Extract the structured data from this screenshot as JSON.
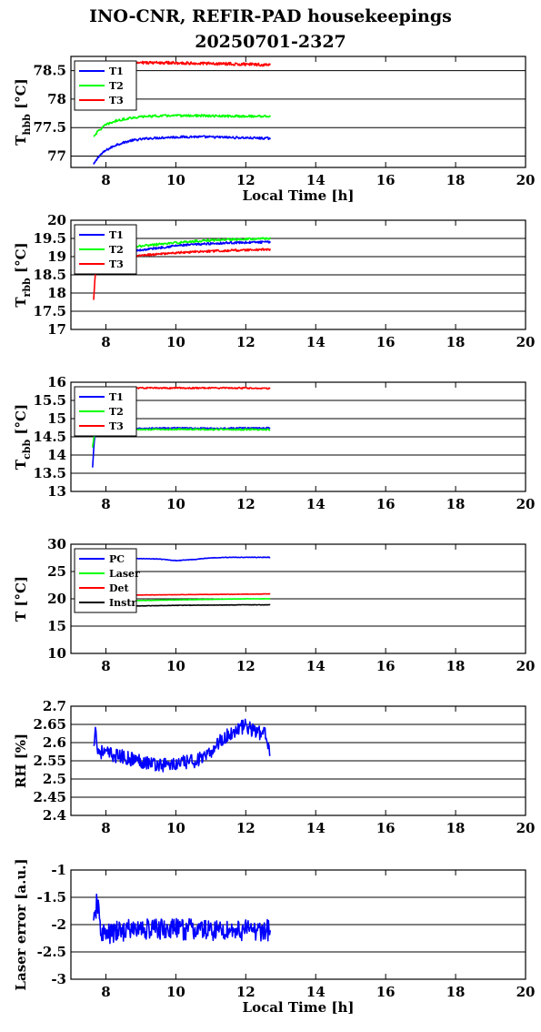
{
  "title_lines": [
    "INO-CNR, REFIR-PAD housekeepings",
    "20250701-2327"
  ],
  "colors": {
    "blue": "#0000ff",
    "green": "#00ff00",
    "red": "#ff0000",
    "black": "#000000"
  },
  "chart_data": [
    {
      "type": "line",
      "ylabel": "T_hbb [°C]",
      "ylabel_main": "T",
      "ylabel_sub": "hbb",
      "ylabel_unit": " [°C]",
      "xlabel": "Local Time [h]",
      "xlim": [
        7,
        20
      ],
      "ylim": [
        76.8,
        78.75
      ],
      "xticks": [
        8,
        10,
        12,
        14,
        16,
        18,
        20
      ],
      "yticks": [
        77,
        77.5,
        78,
        78.5
      ],
      "grid": "horizontal",
      "legend_position": "top-left",
      "series": [
        {
          "name": "T1",
          "color": "#0000ff",
          "x": [
            7.65,
            7.8,
            8.0,
            8.3,
            8.7,
            9.2,
            9.8,
            10.5,
            11.3,
            12.0,
            12.7
          ],
          "y": [
            76.85,
            77.0,
            77.1,
            77.2,
            77.27,
            77.31,
            77.33,
            77.34,
            77.33,
            77.32,
            77.31
          ],
          "noise": 0.02
        },
        {
          "name": "T2",
          "color": "#00ff00",
          "x": [
            7.65,
            7.8,
            8.0,
            8.3,
            8.7,
            9.2,
            9.8,
            10.5,
            11.3,
            12.0,
            12.7
          ],
          "y": [
            77.35,
            77.45,
            77.55,
            77.62,
            77.67,
            77.7,
            77.71,
            77.71,
            77.7,
            77.7,
            77.7
          ],
          "noise": 0.02
        },
        {
          "name": "T3",
          "color": "#ff0000",
          "x": [
            8.05,
            8.4,
            8.8,
            9.5,
            10.5,
            11.5,
            12.7
          ],
          "y": [
            78.6,
            78.63,
            78.64,
            78.64,
            78.63,
            78.62,
            78.6
          ],
          "noise": 0.025
        }
      ]
    },
    {
      "type": "line",
      "ylabel": "T_rbb [°C]",
      "ylabel_main": "T",
      "ylabel_sub": "rbb",
      "ylabel_unit": " [°C]",
      "xlabel": "",
      "xlim": [
        7,
        20
      ],
      "ylim": [
        17,
        20
      ],
      "xticks": [
        8,
        10,
        12,
        14,
        16,
        18,
        20
      ],
      "yticks": [
        17,
        17.5,
        18,
        18.5,
        19,
        19.5,
        20
      ],
      "grid": "horizontal",
      "legend_position": "top-left",
      "series": [
        {
          "name": "T1",
          "color": "#0000ff",
          "x": [
            7.65,
            8.0,
            8.5,
            9.0,
            9.5,
            10.0,
            10.5,
            11.0,
            11.5,
            12.0,
            12.7
          ],
          "y": [
            18.9,
            19.05,
            19.12,
            19.18,
            19.24,
            19.3,
            19.33,
            19.36,
            19.38,
            19.39,
            19.4
          ],
          "noise": 0.03
        },
        {
          "name": "T2",
          "color": "#00ff00",
          "x": [
            7.65,
            8.0,
            8.5,
            9.0,
            9.5,
            10.0,
            10.5,
            11.0,
            11.5,
            12.0,
            12.7
          ],
          "y": [
            19.0,
            19.15,
            19.22,
            19.29,
            19.34,
            19.38,
            19.42,
            19.45,
            19.47,
            19.49,
            19.5
          ],
          "noise": 0.03
        },
        {
          "name": "T3",
          "color": "#ff0000",
          "x": [
            7.65,
            7.68,
            7.72,
            8.0,
            8.5,
            9.0,
            9.5,
            10.0,
            10.5,
            11.0,
            11.5,
            12.0,
            12.7
          ],
          "y": [
            17.8,
            18.3,
            18.75,
            18.9,
            18.98,
            19.03,
            19.07,
            19.1,
            19.13,
            19.15,
            19.17,
            19.18,
            19.2
          ],
          "noise": 0.03
        }
      ]
    },
    {
      "type": "line",
      "ylabel": "T_cbb [°C]",
      "ylabel_main": "T",
      "ylabel_sub": "cbb",
      "ylabel_unit": " [°C]",
      "xlabel": "",
      "xlim": [
        7,
        20
      ],
      "ylim": [
        13,
        16
      ],
      "xticks": [
        8,
        10,
        12,
        14,
        16,
        18,
        20
      ],
      "yticks": [
        13,
        13.5,
        14,
        14.5,
        15,
        15.5,
        16
      ],
      "grid": "horizontal",
      "legend_position": "top-left",
      "series": [
        {
          "name": "T1",
          "color": "#0000ff",
          "x": [
            7.62,
            7.66,
            7.7,
            8.0,
            9.0,
            10.0,
            11.0,
            12.0,
            12.7
          ],
          "y": [
            13.65,
            14.3,
            14.68,
            14.72,
            14.73,
            14.74,
            14.73,
            14.74,
            14.74
          ],
          "noise": 0.02
        },
        {
          "name": "T2",
          "color": "#00ff00",
          "x": [
            7.62,
            7.66,
            7.7,
            8.0,
            9.0,
            10.0,
            11.0,
            12.0,
            12.7
          ],
          "y": [
            14.2,
            14.5,
            14.66,
            14.7,
            14.7,
            14.71,
            14.7,
            14.7,
            14.7
          ],
          "noise": 0.02
        },
        {
          "name": "T3",
          "color": "#ff0000",
          "x": [
            7.62,
            8.0,
            9.0,
            10.0,
            11.0,
            12.0,
            12.7
          ],
          "y": [
            15.83,
            15.84,
            15.84,
            15.84,
            15.84,
            15.84,
            15.83
          ],
          "noise": 0.02
        }
      ]
    },
    {
      "type": "line",
      "ylabel": "T [°C]",
      "ylabel_main": "T [°C]",
      "ylabel_sub": "",
      "ylabel_unit": "",
      "xlabel": "",
      "xlim": [
        7,
        20
      ],
      "ylim": [
        10,
        30
      ],
      "xticks": [
        8,
        10,
        12,
        14,
        16,
        18,
        20
      ],
      "yticks": [
        10,
        15,
        20,
        25,
        30
      ],
      "grid": "horizontal",
      "legend_position": "top-left",
      "series": [
        {
          "name": "PC",
          "color": "#0000ff",
          "x": [
            7.65,
            8.5,
            9.5,
            10.0,
            10.5,
            11.0,
            11.5,
            12.0,
            12.7
          ],
          "y": [
            27.3,
            27.4,
            27.3,
            27.0,
            27.2,
            27.5,
            27.6,
            27.6,
            27.6
          ],
          "noise": 0.05
        },
        {
          "name": "Laser",
          "color": "#00ff00",
          "x": [
            7.65,
            9.0,
            10.0,
            11.0,
            12.0,
            12.7
          ],
          "y": [
            19.6,
            19.7,
            19.8,
            19.9,
            20.0,
            20.0
          ],
          "noise": 0.03
        },
        {
          "name": "Det",
          "color": "#ff0000",
          "x": [
            7.65,
            9.0,
            10.0,
            11.0,
            12.0,
            12.7
          ],
          "y": [
            20.6,
            20.7,
            20.75,
            20.8,
            20.85,
            20.9
          ],
          "noise": 0.03
        },
        {
          "name": "Instr",
          "color": "#000000",
          "x": [
            7.65,
            9.0,
            10.0,
            11.0,
            12.0,
            12.7
          ],
          "y": [
            18.6,
            18.7,
            18.8,
            18.85,
            18.9,
            18.9
          ],
          "noise": 0.03
        }
      ]
    },
    {
      "type": "line",
      "ylabel": "RH [%]",
      "ylabel_main": "RH [%]",
      "ylabel_sub": "",
      "ylabel_unit": "",
      "xlabel": "",
      "xlim": [
        7,
        20
      ],
      "ylim": [
        2.4,
        2.7
      ],
      "xticks": [
        8,
        10,
        12,
        14,
        16,
        18,
        20
      ],
      "yticks": [
        2.4,
        2.45,
        2.5,
        2.55,
        2.6,
        2.65,
        2.7
      ],
      "grid": "horizontal",
      "legend_position": "none",
      "series": [
        {
          "name": "",
          "color": "#0000ff",
          "x": [
            7.65,
            7.7,
            7.75,
            8.0,
            8.5,
            9.0,
            9.5,
            10.0,
            10.5,
            10.9,
            11.2,
            11.5,
            11.8,
            12.0,
            12.3,
            12.6,
            12.7
          ],
          "y": [
            2.58,
            2.66,
            2.58,
            2.57,
            2.56,
            2.55,
            2.54,
            2.54,
            2.55,
            2.56,
            2.6,
            2.62,
            2.64,
            2.645,
            2.63,
            2.62,
            2.57
          ],
          "noise": 0.02
        }
      ]
    },
    {
      "type": "line",
      "ylabel": "Laser error [a.u.]",
      "ylabel_main": "Laser error [a.u.]",
      "ylabel_sub": "",
      "ylabel_unit": "",
      "xlabel": "Local Time [h]",
      "xlim": [
        7,
        20
      ],
      "ylim": [
        -3,
        -1
      ],
      "xticks": [
        8,
        10,
        12,
        14,
        16,
        18,
        20
      ],
      "yticks": [
        -3,
        -2.5,
        -2,
        -1.5,
        -1
      ],
      "grid": "horizontal",
      "legend_position": "none",
      "series": [
        {
          "name": "",
          "color": "#0000ff",
          "x": [
            7.65,
            7.75,
            7.85,
            8.0,
            8.5,
            9.0,
            10.0,
            11.0,
            12.0,
            12.7
          ],
          "y": [
            -2.05,
            -1.55,
            -2.1,
            -2.2,
            -2.1,
            -2.08,
            -2.08,
            -2.1,
            -2.1,
            -2.1
          ],
          "noise": 0.2
        }
      ]
    }
  ]
}
